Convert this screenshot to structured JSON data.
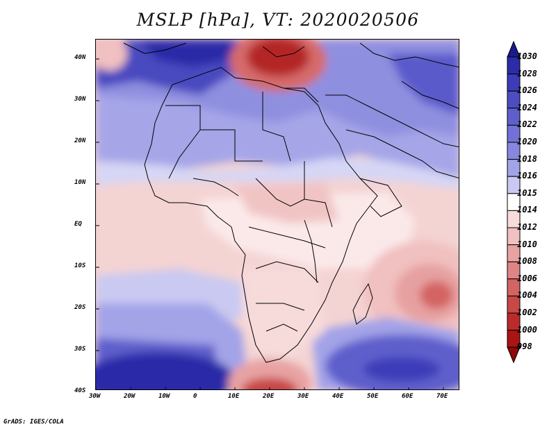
{
  "title": "MSLP [hPa], VT: 2020020506",
  "footer": "GrADS: IGES/COLA",
  "axes": {
    "x_ticks": [
      "30W",
      "20W",
      "10W",
      "0",
      "10E",
      "20E",
      "30E",
      "40E",
      "50E",
      "60E",
      "70E"
    ],
    "y_ticks": [
      "40N",
      "30N",
      "20N",
      "10N",
      "EQ",
      "10S",
      "20S",
      "30S",
      "40S"
    ]
  },
  "colorbar": {
    "levels": [
      "1030",
      "1028",
      "1026",
      "1024",
      "1022",
      "1020",
      "1018",
      "1016",
      "1015",
      "1014",
      "1012",
      "1010",
      "1008",
      "1006",
      "1004",
      "1002",
      "1000",
      "998"
    ],
    "colors": [
      "#1a1a8c",
      "#2c2ca8",
      "#3c3cb9",
      "#4d4dc2",
      "#5f5fcc",
      "#7272d6",
      "#8787de",
      "#a3a3e8",
      "#c9c9f2",
      "#ffffff",
      "#f8dcdc",
      "#f1c0c0",
      "#e8a2a2",
      "#df8484",
      "#d46464",
      "#c84747",
      "#bb2b2b",
      "#aa1414",
      "#8c0a0a"
    ]
  },
  "chart_data": {
    "type": "heatmap",
    "variable": "MSLP",
    "units": "hPa",
    "valid_time": "2020020506",
    "lon_range": [
      -30,
      75
    ],
    "lat_range": [
      -40,
      45
    ],
    "features": [
      {
        "name": "high over western Mediterranean / Atlantic",
        "lon": -10,
        "lat": 38,
        "value": 1030
      },
      {
        "name": "low over eastern Mediterranean / Greece",
        "lon": 22,
        "lat": 38,
        "value": 1000
      },
      {
        "name": "high over southern Atlantic",
        "lon": -15,
        "lat": -37,
        "value": 1028
      },
      {
        "name": "high over southern Indian Ocean",
        "lon": 58,
        "lat": -36,
        "value": 1026
      },
      {
        "name": "tropical low east of Madagascar",
        "lon": 68,
        "lat": -17,
        "value": 1004
      },
      {
        "name": "low south of South Africa",
        "lon": 20,
        "lat": -39,
        "value": 1004
      }
    ]
  }
}
